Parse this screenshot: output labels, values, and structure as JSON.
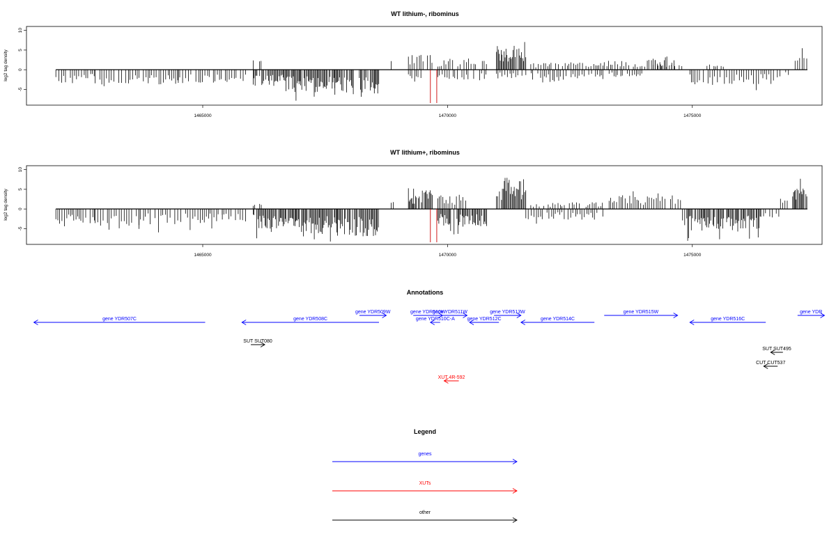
{
  "chart_data": [
    {
      "type": "bar",
      "title": "WT lithium-, ribominus",
      "ylabel": "log2 tag density",
      "xlabel": "",
      "xlim": [
        1461400,
        1477650
      ],
      "ylim": [
        -9,
        11
      ],
      "x_ticks": [
        1465000,
        1470000,
        1475000
      ],
      "x_tick_labels": [
        "1465000",
        "1470000",
        "1475000"
      ],
      "y_ticks": [
        -5,
        0,
        5,
        10
      ],
      "y_tick_labels": [
        "-5",
        "0",
        "5",
        "10"
      ],
      "markers": [
        1469650,
        1469780
      ],
      "marker_color": "#cc0000",
      "segments": [
        {
          "start": 1462000,
          "end": 1462800,
          "strand": "-",
          "level": 3.0
        },
        {
          "start": 1462800,
          "end": 1463700,
          "strand": "-",
          "level": 3.1
        },
        {
          "start": 1463700,
          "end": 1464500,
          "strand": "-",
          "level": 3.0
        },
        {
          "start": 1464500,
          "end": 1465400,
          "strand": "-",
          "level": 2.8
        },
        {
          "start": 1465400,
          "end": 1465900,
          "strand": "-",
          "level": 2.6
        },
        {
          "start": 1466030,
          "end": 1466200,
          "strand": "+",
          "level": 3.0
        },
        {
          "start": 1466030,
          "end": 1466700,
          "strand": "-",
          "level": 3.6
        },
        {
          "start": 1466700,
          "end": 1467700,
          "strand": "-",
          "level": 4.6
        },
        {
          "start": 1467700,
          "end": 1468600,
          "strand": "-",
          "level": 5.2
        },
        {
          "start": 1468850,
          "end": 1468900,
          "strand": "+",
          "level": 2.5
        },
        {
          "start": 1469200,
          "end": 1469700,
          "strand": "+",
          "level": 3.5
        },
        {
          "start": 1469200,
          "end": 1469500,
          "strand": "-",
          "level": 1.8
        },
        {
          "start": 1469800,
          "end": 1470800,
          "strand": "+",
          "level": 2.0
        },
        {
          "start": 1469800,
          "end": 1470800,
          "strand": "-",
          "level": 2.2
        },
        {
          "start": 1471000,
          "end": 1471600,
          "strand": "+",
          "level": 5.0
        },
        {
          "start": 1471000,
          "end": 1471600,
          "strand": "-",
          "level": 1.8
        },
        {
          "start": 1471600,
          "end": 1473200,
          "strand": "-",
          "level": 2.5
        },
        {
          "start": 1471700,
          "end": 1473200,
          "strand": "+",
          "level": 1.6
        },
        {
          "start": 1473200,
          "end": 1474800,
          "strand": "+",
          "level": 2.0
        },
        {
          "start": 1473300,
          "end": 1474000,
          "strand": "-",
          "level": 1.5
        },
        {
          "start": 1474200,
          "end": 1474700,
          "strand": "+",
          "level": 2.8
        },
        {
          "start": 1474950,
          "end": 1476400,
          "strand": "-",
          "level": 3.2
        },
        {
          "start": 1475300,
          "end": 1475700,
          "strand": "+",
          "level": 1.2
        },
        {
          "start": 1476400,
          "end": 1476800,
          "strand": "-",
          "level": 2.0
        },
        {
          "start": 1476850,
          "end": 1477000,
          "strand": "-",
          "level": 1.5
        },
        {
          "start": 1477100,
          "end": 1477350,
          "strand": "+",
          "level": 3.0
        }
      ]
    },
    {
      "type": "bar",
      "title": "WT lithium+, ribominus",
      "ylabel": "log2 tag density",
      "xlabel": "",
      "xlim": [
        1461400,
        1477650
      ],
      "ylim": [
        -9,
        11
      ],
      "x_ticks": [
        1465000,
        1470000,
        1475000
      ],
      "x_tick_labels": [
        "1465000",
        "1470000",
        "1475000"
      ],
      "y_ticks": [
        -5,
        0,
        5,
        10
      ],
      "y_tick_labels": [
        "-5",
        "0",
        "5",
        "10"
      ],
      "markers": [
        1469650,
        1469780
      ],
      "marker_color": "#cc0000",
      "segments": [
        {
          "start": 1462000,
          "end": 1462800,
          "strand": "-",
          "level": 3.3
        },
        {
          "start": 1462800,
          "end": 1463700,
          "strand": "-",
          "level": 3.4
        },
        {
          "start": 1463700,
          "end": 1464500,
          "strand": "-",
          "level": 3.2
        },
        {
          "start": 1464500,
          "end": 1465400,
          "strand": "-",
          "level": 3.0
        },
        {
          "start": 1465400,
          "end": 1465900,
          "strand": "-",
          "level": 2.8
        },
        {
          "start": 1466030,
          "end": 1466200,
          "strand": "+",
          "level": 1.2
        },
        {
          "start": 1466030,
          "end": 1466700,
          "strand": "-",
          "level": 4.0
        },
        {
          "start": 1466700,
          "end": 1467700,
          "strand": "-",
          "level": 5.0
        },
        {
          "start": 1467700,
          "end": 1468600,
          "strand": "-",
          "level": 5.6
        },
        {
          "start": 1468850,
          "end": 1468900,
          "strand": "+",
          "level": 2.0
        },
        {
          "start": 1469200,
          "end": 1469700,
          "strand": "+",
          "level": 3.8
        },
        {
          "start": 1469800,
          "end": 1470400,
          "strand": "+",
          "level": 3.0
        },
        {
          "start": 1469800,
          "end": 1470800,
          "strand": "-",
          "level": 3.6
        },
        {
          "start": 1471000,
          "end": 1471600,
          "strand": "+",
          "level": 6.5
        },
        {
          "start": 1471600,
          "end": 1473200,
          "strand": "-",
          "level": 2.2
        },
        {
          "start": 1471700,
          "end": 1473200,
          "strand": "+",
          "level": 1.4
        },
        {
          "start": 1473300,
          "end": 1474800,
          "strand": "+",
          "level": 2.8
        },
        {
          "start": 1474800,
          "end": 1476400,
          "strand": "-",
          "level": 4.6
        },
        {
          "start": 1476400,
          "end": 1476800,
          "strand": "-",
          "level": 2.0
        },
        {
          "start": 1476800,
          "end": 1477050,
          "strand": "+",
          "level": 2.2
        },
        {
          "start": 1477050,
          "end": 1477350,
          "strand": "+",
          "level": 4.4
        }
      ]
    }
  ],
  "annotations": {
    "title": "Annotations",
    "items": [
      {
        "label": "gene YDR507C",
        "type": "gene",
        "color": "#0000ff",
        "strand": "-",
        "start": 1461550,
        "end": 1465050,
        "row": 2
      },
      {
        "label": "gene YDR508C",
        "type": "gene",
        "color": "#0000ff",
        "strand": "-",
        "start": 1465800,
        "end": 1468600,
        "row": 2
      },
      {
        "label": "gene YDR509W",
        "type": "gene",
        "color": "#0000ff",
        "strand": "+",
        "start": 1468200,
        "end": 1468750,
        "row": 1
      },
      {
        "label": "gene YDR510W",
        "type": "gene",
        "color": "#0000ff",
        "strand": "+",
        "start": 1469300,
        "end": 1469900,
        "row": 1
      },
      {
        "label": "gene YDR511W",
        "type": "gene",
        "color": "#0000ff",
        "strand": "+",
        "start": 1469700,
        "end": 1470400,
        "row": 1
      },
      {
        "label": "gene YDR510C-A",
        "type": "gene",
        "color": "#0000ff",
        "strand": "-",
        "start": 1469650,
        "end": 1469850,
        "row": 2
      },
      {
        "label": "gene YDR512C",
        "type": "gene",
        "color": "#0000ff",
        "strand": "-",
        "start": 1470450,
        "end": 1471050,
        "row": 2
      },
      {
        "label": "gene YDR513W",
        "type": "gene",
        "color": "#0000ff",
        "strand": "+",
        "start": 1470950,
        "end": 1471500,
        "row": 1
      },
      {
        "label": "gene YDR514C",
        "type": "gene",
        "color": "#0000ff",
        "strand": "-",
        "start": 1471500,
        "end": 1473000,
        "row": 2
      },
      {
        "label": "gene YDR515W",
        "type": "gene",
        "color": "#0000ff",
        "strand": "+",
        "start": 1473200,
        "end": 1474700,
        "row": 1
      },
      {
        "label": "gene YDR516C",
        "type": "gene",
        "color": "#0000ff",
        "strand": "-",
        "start": 1474950,
        "end": 1476500,
        "row": 2
      },
      {
        "label": "gene YDR",
        "type": "gene",
        "color": "#0000ff",
        "strand": "+",
        "start": 1477150,
        "end": 1477700,
        "row": 1
      },
      {
        "label": "SUT SUT080",
        "type": "other",
        "color": "#000000",
        "strand": "+",
        "start": 1466050,
        "end": 1466200,
        "row": 3
      },
      {
        "label": "SUT SUT495",
        "type": "other",
        "color": "#000000",
        "strand": "-",
        "start": 1476600,
        "end": 1476850,
        "row": 4
      },
      {
        "label": "CUT CUT537",
        "type": "other",
        "color": "#000000",
        "strand": "-",
        "start": 1476550,
        "end": 1476650,
        "row": 5
      },
      {
        "label": "XUT 4R-592",
        "type": "xut",
        "color": "#ff0000",
        "strand": "-",
        "start": 1469930,
        "end": 1470230,
        "row": 6
      }
    ]
  },
  "legend": {
    "title": "Legend",
    "items": [
      {
        "label": "genes",
        "color": "#0000ff"
      },
      {
        "label": "XUTs",
        "color": "#ff0000"
      },
      {
        "label": "other",
        "color": "#000000"
      }
    ]
  }
}
